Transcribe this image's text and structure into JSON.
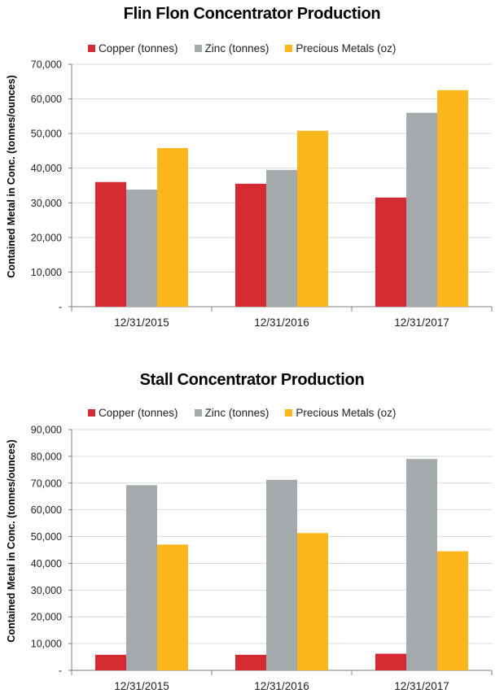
{
  "colors": {
    "copper": "#d42a32",
    "zinc": "#a4a9ac",
    "precious": "#fcb61b",
    "grid": "#d9d9d9",
    "axis": "#7f7f7f"
  },
  "chart_data": [
    {
      "type": "bar",
      "title": "Flin Flon Concentrator Production",
      "ylabel": "Contained Metal in Conc. (tonnes/ounces)",
      "xlabel": "",
      "categories": [
        "12/31/2015",
        "12/31/2016",
        "12/31/2017"
      ],
      "series": [
        {
          "name": "Copper (tonnes)",
          "values": [
            36000,
            35500,
            31500
          ]
        },
        {
          "name": "Zinc (tonnes)",
          "values": [
            33800,
            39500,
            56000
          ]
        },
        {
          "name": "Precious Metals (oz)",
          "values": [
            45800,
            50800,
            62500
          ]
        }
      ],
      "ylim": [
        0,
        70000
      ],
      "yticks": [
        "-",
        "10,000",
        "20,000",
        "30,000",
        "40,000",
        "50,000",
        "60,000",
        "70,000"
      ],
      "grid": true,
      "legend": "top"
    },
    {
      "type": "bar",
      "title": "Stall Concentrator Production",
      "ylabel": "Contained Metal in Conc. (tonnes/ounces)",
      "xlabel": "",
      "categories": [
        "12/31/2015",
        "12/31/2016",
        "12/31/2017"
      ],
      "series": [
        {
          "name": "Copper (tonnes)",
          "values": [
            5800,
            5800,
            6200
          ]
        },
        {
          "name": "Zinc (tonnes)",
          "values": [
            69200,
            71200,
            79000
          ]
        },
        {
          "name": "Precious Metals (oz)",
          "values": [
            47000,
            51300,
            44500
          ]
        }
      ],
      "ylim": [
        0,
        90000
      ],
      "yticks": [
        "-",
        "10,000",
        "20,000",
        "30,000",
        "40,000",
        "50,000",
        "60,000",
        "70,000",
        "80,000",
        "90,000"
      ],
      "grid": true,
      "legend": "top"
    }
  ]
}
